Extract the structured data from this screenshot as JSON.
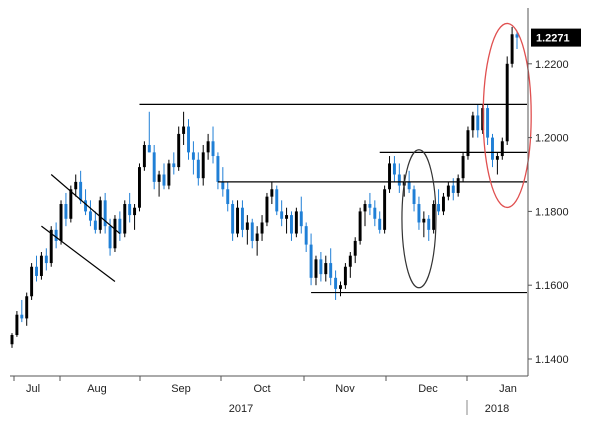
{
  "chart_data": {
    "type": "candlestick",
    "title": "",
    "xlabel": "",
    "ylabel": "",
    "ylim": [
      1.14,
      1.232
    ],
    "grid": false,
    "colors": {
      "up": "#000000",
      "down": "#1f7fd6",
      "annotation": "#000000",
      "highlight_circle": "#e05050",
      "badge_bg": "#000000"
    },
    "x_months": [
      "Jul",
      "Aug",
      "Sep",
      "Oct",
      "Nov",
      "Dec",
      "Jan"
    ],
    "x_years": [
      "2017",
      "2018"
    ],
    "y_ticks": [
      "1.2200",
      "1.2000",
      "1.1800",
      "1.1600",
      "1.1400"
    ],
    "y_tick_values": [
      1.22,
      1.2,
      1.18,
      1.16,
      1.14
    ],
    "last_price_label": "1.2271",
    "last_price": 1.2271,
    "candles": [
      [
        1.144,
        1.147,
        1.143,
        1.1465
      ],
      [
        1.1465,
        1.153,
        1.146,
        1.152
      ],
      [
        1.152,
        1.156,
        1.15,
        1.151
      ],
      [
        1.151,
        1.158,
        1.149,
        1.157
      ],
      [
        1.157,
        1.166,
        1.156,
        1.165
      ],
      [
        1.165,
        1.168,
        1.161,
        1.1625
      ],
      [
        1.1625,
        1.169,
        1.1615,
        1.168
      ],
      [
        1.168,
        1.17,
        1.164,
        1.166
      ],
      [
        1.166,
        1.176,
        1.165,
        1.175
      ],
      [
        1.175,
        1.177,
        1.17,
        1.172
      ],
      [
        1.172,
        1.183,
        1.171,
        1.182
      ],
      [
        1.182,
        1.185,
        1.176,
        1.178
      ],
      [
        1.178,
        1.187,
        1.177,
        1.186
      ],
      [
        1.186,
        1.19,
        1.184,
        1.188
      ],
      [
        1.188,
        1.191,
        1.182,
        1.183
      ],
      [
        1.183,
        1.186,
        1.179,
        1.18
      ],
      [
        1.18,
        1.183,
        1.176,
        1.1775
      ],
      [
        1.1775,
        1.18,
        1.174,
        1.175
      ],
      [
        1.175,
        1.184,
        1.174,
        1.183
      ],
      [
        1.183,
        1.185,
        1.174,
        1.176
      ],
      [
        1.176,
        1.178,
        1.168,
        1.17
      ],
      [
        1.17,
        1.179,
        1.169,
        1.178
      ],
      [
        1.178,
        1.18,
        1.172,
        1.174
      ],
      [
        1.174,
        1.183,
        1.173,
        1.182
      ],
      [
        1.182,
        1.185,
        1.177,
        1.179
      ],
      [
        1.179,
        1.182,
        1.175,
        1.181
      ],
      [
        1.181,
        1.193,
        1.18,
        1.192
      ],
      [
        1.192,
        1.199,
        1.191,
        1.198
      ],
      [
        1.198,
        1.207,
        1.196,
        1.196
      ],
      [
        1.196,
        1.198,
        1.186,
        1.188
      ],
      [
        1.188,
        1.191,
        1.184,
        1.19
      ],
      [
        1.19,
        1.193,
        1.186,
        1.187
      ],
      [
        1.187,
        1.194,
        1.186,
        1.193
      ],
      [
        1.193,
        1.196,
        1.19,
        1.192
      ],
      [
        1.192,
        1.203,
        1.191,
        1.201
      ],
      [
        1.201,
        1.207,
        1.198,
        1.203
      ],
      [
        1.203,
        1.205,
        1.194,
        1.196
      ],
      [
        1.196,
        1.199,
        1.19,
        1.194
      ],
      [
        1.194,
        1.196,
        1.187,
        1.189
      ],
      [
        1.189,
        1.198,
        1.187,
        1.196
      ],
      [
        1.196,
        1.201,
        1.194,
        1.199
      ],
      [
        1.199,
        1.203,
        1.193,
        1.195
      ],
      [
        1.195,
        1.196,
        1.186,
        1.188
      ],
      [
        1.188,
        1.192,
        1.184,
        1.186
      ],
      [
        1.186,
        1.188,
        1.18,
        1.182
      ],
      [
        1.182,
        1.183,
        1.172,
        1.174
      ],
      [
        1.174,
        1.183,
        1.173,
        1.181
      ],
      [
        1.181,
        1.183,
        1.173,
        1.175
      ],
      [
        1.175,
        1.179,
        1.171,
        1.177
      ],
      [
        1.177,
        1.178,
        1.17,
        1.172
      ],
      [
        1.172,
        1.176,
        1.168,
        1.174
      ],
      [
        1.174,
        1.179,
        1.172,
        1.177
      ],
      [
        1.177,
        1.185,
        1.176,
        1.184
      ],
      [
        1.184,
        1.188,
        1.182,
        1.186
      ],
      [
        1.186,
        1.187,
        1.179,
        1.18
      ],
      [
        1.18,
        1.183,
        1.176,
        1.178
      ],
      [
        1.178,
        1.181,
        1.174,
        1.179
      ],
      [
        1.179,
        1.18,
        1.172,
        1.174
      ],
      [
        1.174,
        1.181,
        1.173,
        1.18
      ],
      [
        1.18,
        1.184,
        1.174,
        1.176
      ],
      [
        1.176,
        1.177,
        1.169,
        1.171
      ],
      [
        1.171,
        1.174,
        1.16,
        1.162
      ],
      [
        1.162,
        1.168,
        1.16,
        1.167
      ],
      [
        1.167,
        1.169,
        1.161,
        1.163
      ],
      [
        1.163,
        1.168,
        1.161,
        1.166
      ],
      [
        1.166,
        1.17,
        1.16,
        1.162
      ],
      [
        1.162,
        1.164,
        1.156,
        1.159
      ],
      [
        1.159,
        1.161,
        1.157,
        1.16
      ],
      [
        1.16,
        1.166,
        1.159,
        1.165
      ],
      [
        1.165,
        1.169,
        1.162,
        1.168
      ],
      [
        1.168,
        1.173,
        1.166,
        1.172
      ],
      [
        1.172,
        1.181,
        1.171,
        1.18
      ],
      [
        1.18,
        1.183,
        1.176,
        1.182
      ],
      [
        1.182,
        1.185,
        1.179,
        1.181
      ],
      [
        1.181,
        1.183,
        1.176,
        1.178
      ],
      [
        1.178,
        1.18,
        1.174,
        1.175
      ],
      [
        1.175,
        1.187,
        1.174,
        1.186
      ],
      [
        1.186,
        1.195,
        1.185,
        1.193
      ],
      [
        1.193,
        1.195,
        1.188,
        1.19
      ],
      [
        1.19,
        1.193,
        1.185,
        1.187
      ],
      [
        1.187,
        1.19,
        1.184,
        1.188
      ],
      [
        1.188,
        1.191,
        1.185,
        1.186
      ],
      [
        1.186,
        1.187,
        1.18,
        1.182
      ],
      [
        1.182,
        1.184,
        1.175,
        1.177
      ],
      [
        1.177,
        1.18,
        1.173,
        1.178
      ],
      [
        1.178,
        1.179,
        1.172,
        1.175
      ],
      [
        1.175,
        1.183,
        1.174,
        1.182
      ],
      [
        1.182,
        1.186,
        1.179,
        1.18
      ],
      [
        1.18,
        1.185,
        1.179,
        1.184
      ],
      [
        1.184,
        1.188,
        1.183,
        1.187
      ],
      [
        1.187,
        1.189,
        1.183,
        1.185
      ],
      [
        1.185,
        1.19,
        1.184,
        1.189
      ],
      [
        1.189,
        1.196,
        1.188,
        1.195
      ],
      [
        1.195,
        1.203,
        1.194,
        1.202
      ],
      [
        1.202,
        1.207,
        1.2,
        1.206
      ],
      [
        1.206,
        1.209,
        1.2,
        1.202
      ],
      [
        1.202,
        1.209,
        1.201,
        1.208
      ],
      [
        1.208,
        1.209,
        1.198,
        1.2
      ],
      [
        1.2,
        1.201,
        1.192,
        1.194
      ],
      [
        1.194,
        1.196,
        1.19,
        1.195
      ],
      [
        1.195,
        1.2,
        1.194,
        1.199
      ],
      [
        1.199,
        1.222,
        1.198,
        1.22
      ],
      [
        1.22,
        1.23,
        1.219,
        1.228
      ],
      [
        1.228,
        1.229,
        1.224,
        1.2271
      ]
    ],
    "annotations": {
      "resistance_lines": [
        {
          "value": 1.209,
          "from_index": 26
        },
        {
          "value": 1.196,
          "from_index": 75
        },
        {
          "value": 1.188,
          "from_index": 42
        },
        {
          "value": 1.158,
          "from_index": 61
        }
      ],
      "channel": {
        "upper": [
          [
            8,
            1.19
          ],
          [
            22,
            1.174
          ]
        ],
        "lower": [
          [
            6,
            1.176
          ],
          [
            21,
            1.161
          ]
        ]
      },
      "black_ellipse_center": [
        83,
        1.178
      ],
      "red_ellipse_center": [
        101,
        1.206
      ]
    }
  }
}
